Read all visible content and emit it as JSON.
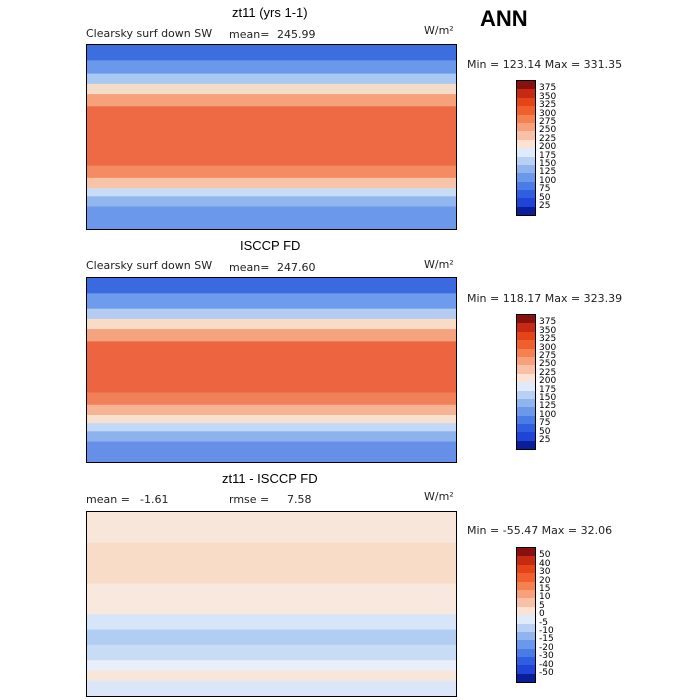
{
  "season": "ANN",
  "units": "W/m²",
  "panels": [
    {
      "title": "zt11 (yrs 1-1)",
      "variable": "Clearsky surf down SW",
      "stat_label": "mean=",
      "stat_value": "245.99",
      "minmax": "Min = 123.14 Max = 331.35",
      "bands": [
        {
          "lat": 90,
          "color": "#3c6ee0"
        },
        {
          "lat": 75,
          "color": "#6a98ea"
        },
        {
          "lat": 62,
          "color": "#a9c8f2"
        },
        {
          "lat": 52,
          "color": "#f5dcc8"
        },
        {
          "lat": 42,
          "color": "#f6a07c"
        },
        {
          "lat": 30,
          "color": "#ee6a44"
        },
        {
          "lat": -28,
          "color": "#f48b62"
        },
        {
          "lat": -40,
          "color": "#f7c4a8"
        },
        {
          "lat": -50,
          "color": "#c8dcf6"
        },
        {
          "lat": -58,
          "color": "#92b6ee"
        },
        {
          "lat": -68,
          "color": "#6b98ea"
        }
      ]
    },
    {
      "title": "ISCCP FD",
      "variable": "Clearsky surf down SW",
      "stat_label": "mean=",
      "stat_value": "247.60",
      "minmax": "Min = 118.17 Max = 323.39",
      "bands": [
        {
          "lat": 90,
          "color": "#3a6ae0"
        },
        {
          "lat": 75,
          "color": "#6e9bec"
        },
        {
          "lat": 60,
          "color": "#b3cdf2"
        },
        {
          "lat": 50,
          "color": "#f8dcc6"
        },
        {
          "lat": 40,
          "color": "#f5a27e"
        },
        {
          "lat": 28,
          "color": "#ec6440"
        },
        {
          "lat": -22,
          "color": "#f08058"
        },
        {
          "lat": -34,
          "color": "#f6b494"
        },
        {
          "lat": -44,
          "color": "#f8e0d0"
        },
        {
          "lat": -52,
          "color": "#c2d8f6"
        },
        {
          "lat": -60,
          "color": "#8eb2ee"
        },
        {
          "lat": -70,
          "color": "#6690e8"
        }
      ]
    },
    {
      "title": "zt11 - ISCCP FD",
      "stat_label": "mean =",
      "stat_value": "-1.61",
      "stat2_label": "rmse =",
      "stat2_value": "7.58",
      "minmax": "Min = -55.47 Max =  32.06",
      "bands": [
        {
          "lat": 90,
          "color": "#f9e6da"
        },
        {
          "lat": 60,
          "color": "#f8dcc8"
        },
        {
          "lat": 20,
          "color": "#f9e8de"
        },
        {
          "lat": -10,
          "color": "#d6e6f8"
        },
        {
          "lat": -25,
          "color": "#b2cdf2"
        },
        {
          "lat": -40,
          "color": "#c8dcf6"
        },
        {
          "lat": -55,
          "color": "#e8eefa"
        },
        {
          "lat": -65,
          "color": "#f9e6da"
        },
        {
          "lat": -75,
          "color": "#dbe6f8"
        }
      ]
    }
  ],
  "colorbar_main": {
    "labels": [
      "375",
      "350",
      "325",
      "300",
      "275",
      "250",
      "225",
      "200",
      "175",
      "150",
      "125",
      "100",
      "75",
      "50",
      "25"
    ],
    "colors": [
      "#8a1010",
      "#c62a12",
      "#e54418",
      "#f0602e",
      "#f58050",
      "#f8a07c",
      "#f8c0a6",
      "#fbe2d4",
      "#dfeafa",
      "#b8d0f4",
      "#90b4ee",
      "#6a98ea",
      "#4a7ce6",
      "#2f5fe0",
      "#1e44d8",
      "#0a1e9a"
    ]
  },
  "colorbar_diff": {
    "labels": [
      "50",
      "40",
      "30",
      "20",
      "15",
      "10",
      "5",
      "0",
      "-5",
      "-10",
      "-15",
      "-20",
      "-30",
      "-40",
      "-50"
    ],
    "colors": [
      "#8a1010",
      "#c62a12",
      "#e54418",
      "#f0602e",
      "#f58050",
      "#f8a07c",
      "#f8c0a6",
      "#fbe2d4",
      "#dfeafa",
      "#b8d0f4",
      "#90b4ee",
      "#6a98ea",
      "#4a7ce6",
      "#2f5fe0",
      "#1e44d8",
      "#0a1e9a"
    ]
  },
  "chart_data": [
    {
      "type": "heatmap",
      "title": "zt11 (yrs 1-1)",
      "subtitle": "Clearsky surf down SW",
      "units": "W/m²",
      "mean": 245.99,
      "min": 123.14,
      "max": 331.35,
      "contour_levels": [
        25,
        50,
        75,
        100,
        125,
        150,
        175,
        200,
        225,
        250,
        275,
        300,
        325,
        350,
        375
      ]
    },
    {
      "type": "heatmap",
      "title": "ISCCP FD",
      "subtitle": "Clearsky surf down SW",
      "units": "W/m²",
      "mean": 247.6,
      "min": 118.17,
      "max": 323.39,
      "contour_levels": [
        25,
        50,
        75,
        100,
        125,
        150,
        175,
        200,
        225,
        250,
        275,
        300,
        325,
        350,
        375
      ]
    },
    {
      "type": "heatmap",
      "title": "zt11 - ISCCP FD",
      "units": "W/m²",
      "mean": -1.61,
      "rmse": 7.58,
      "min": -55.47,
      "max": 32.06,
      "contour_levels": [
        -50,
        -40,
        -30,
        -20,
        -15,
        -10,
        -5,
        0,
        5,
        10,
        15,
        20,
        30,
        40,
        50
      ]
    }
  ]
}
